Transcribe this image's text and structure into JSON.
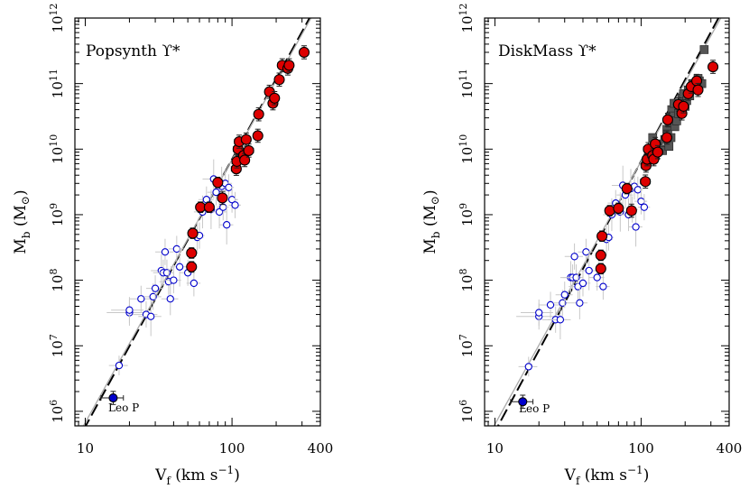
{
  "chart_data": [
    {
      "type": "scatter",
      "title": "Popsynth ϒ*",
      "xlabel": "Vf (km s-1)",
      "ylabel": "Mb (M☉)",
      "xscale": "log",
      "yscale": "log",
      "xlim": [
        8.5,
        400
      ],
      "ylim": [
        600000,
        1000000000000
      ],
      "xticks": [
        {
          "v": 10,
          "label": "10"
        },
        {
          "v": 100,
          "label": "100"
        },
        {
          "v": 400,
          "label": "400"
        }
      ],
      "yticks": [
        {
          "v": 6,
          "label": "6"
        },
        {
          "v": 7,
          "label": "7"
        },
        {
          "v": 8,
          "label": "8"
        },
        {
          "v": 9,
          "label": "9"
        },
        {
          "v": 10,
          "label": "10"
        },
        {
          "v": 11,
          "label": "11"
        },
        {
          "v": 12,
          "label": "12"
        }
      ],
      "axis_text": {
        "x_main": "V",
        "x_sub": "f",
        "x_rest": " (km s",
        "x_sup": "−1",
        "x_close": ")",
        "y_main": "M",
        "y_sub": "b",
        "y_rest": " (M",
        "y_sun": "⊙",
        "y_close": ")",
        "tick_base": "10"
      },
      "annotation": "Leo P",
      "fit_lines": [
        {
          "style": "dashed",
          "color": "#000000",
          "points": [
            [
              8.5,
              300000
            ],
            [
              400,
              2000000000000
            ]
          ]
        },
        {
          "style": "solid",
          "color": "#aaaaaa",
          "points": [
            [
              8.5,
              350000
            ],
            [
              400,
              1800000000000
            ]
          ]
        }
      ],
      "series": [
        {
          "marker": "open-circle",
          "color": "#0000cc",
          "points": [
            [
              17,
              5000000,
              2.5,
              0.15
            ],
            [
              20,
              32000000,
              6,
              0.2
            ],
            [
              20,
              35000000,
              5,
              0.2
            ],
            [
              24,
              52000000,
              4,
              0.2
            ],
            [
              26,
              30000000,
              5,
              0.2
            ],
            [
              28,
              28000000,
              5,
              0.3
            ],
            [
              29,
              56000000,
              4,
              0.2
            ],
            [
              30,
              75000000,
              4,
              0.2
            ],
            [
              33,
              140000000,
              5,
              0.25
            ],
            [
              34,
              130000000,
              5,
              0.2
            ],
            [
              35,
              270000000,
              5,
              0.2
            ],
            [
              36,
              130000000,
              4,
              0.2
            ],
            [
              37,
              95000000,
              5,
              0.2
            ],
            [
              38,
              52000000,
              5,
              0.25
            ],
            [
              40,
              100000000,
              5,
              0.2
            ],
            [
              42,
              300000000,
              5,
              0.2
            ],
            [
              44,
              160000000,
              6,
              0.3
            ],
            [
              50,
              130000000,
              6,
              0.2
            ],
            [
              55,
              90000000,
              6,
              0.2
            ],
            [
              58,
              450000000,
              6,
              0.25
            ],
            [
              60,
              480000000,
              5,
              0.2
            ],
            [
              63,
              1100000000,
              8,
              0.25
            ],
            [
              67,
              1700000000,
              8,
              0.2
            ],
            [
              72,
              1200000000,
              8,
              0.3
            ],
            [
              75,
              3500000000,
              12,
              0.3
            ],
            [
              78,
              2200000000,
              10,
              0.2
            ],
            [
              82,
              1100000000,
              10,
              0.25
            ],
            [
              85,
              2700000000,
              10,
              0.3
            ],
            [
              87,
              1300000000,
              8,
              0.2
            ],
            [
              90,
              3000000000,
              10,
              0.2
            ],
            [
              92,
              700000000,
              10,
              0.3
            ],
            [
              95,
              2600000000,
              8,
              0.2
            ],
            [
              100,
              1700000000,
              10,
              0.2
            ],
            [
              105,
              1400000000,
              10,
              0.2
            ]
          ]
        },
        {
          "marker": "filled-circle",
          "color": "#dd0000",
          "points": [
            [
              53,
              160000000,
              3,
              0.08
            ],
            [
              53,
              260000000,
              3,
              0.08
            ],
            [
              54,
              520000000,
              3,
              0.08
            ],
            [
              61,
              1300000000,
              4,
              0.08
            ],
            [
              70,
              1300000000,
              4,
              0.08
            ],
            [
              80,
              3100000000,
              5,
              0.08
            ],
            [
              86,
              1800000000,
              6,
              0.1
            ],
            [
              107,
              5000000000,
              8,
              0.1
            ],
            [
              108,
              6500000000,
              8,
              0.1
            ],
            [
              110,
              10000000000,
              8,
              0.1
            ],
            [
              112,
              13000000000,
              8,
              0.1
            ],
            [
              120,
              8000000000,
              9,
              0.1
            ],
            [
              122,
              6800000000,
              8,
              0.1
            ],
            [
              125,
              14000000000,
              9,
              0.1
            ],
            [
              130,
              9500000000,
              10,
              0.1
            ],
            [
              150,
              16000000000,
              10,
              0.1
            ],
            [
              152,
              34000000000,
              10,
              0.1
            ],
            [
              180,
              75000000000,
              12,
              0.1
            ],
            [
              190,
              50000000000,
              10,
              0.1
            ],
            [
              195,
              60000000000,
              12,
              0.1
            ],
            [
              210,
              115000000000,
              14,
              0.1
            ],
            [
              220,
              190000000000,
              15,
              0.1
            ],
            [
              240,
              170000000000,
              15,
              0.1
            ],
            [
              245,
              190000000000,
              15,
              0.1
            ],
            [
              310,
              300000000000,
              20,
              0.1
            ]
          ]
        },
        {
          "marker": "filled-circle",
          "color": "#0000cc",
          "points": [
            [
              15.5,
              1600000,
              2.7,
              0.1
            ]
          ]
        }
      ]
    },
    {
      "type": "scatter",
      "title": "DiskMass ϒ*",
      "xlabel": "Vf (km s-1)",
      "ylabel": "Mb (M☉)",
      "xscale": "log",
      "yscale": "log",
      "xlim": [
        8.5,
        400
      ],
      "ylim": [
        600000,
        1000000000000
      ],
      "xticks": [
        {
          "v": 10,
          "label": "10"
        },
        {
          "v": 100,
          "label": "100"
        },
        {
          "v": 400,
          "label": "400"
        }
      ],
      "yticks": [
        {
          "v": 6,
          "label": "6"
        },
        {
          "v": 7,
          "label": "7"
        },
        {
          "v": 8,
          "label": "8"
        },
        {
          "v": 9,
          "label": "9"
        },
        {
          "v": 10,
          "label": "10"
        },
        {
          "v": 11,
          "label": "11"
        },
        {
          "v": 12,
          "label": "12"
        }
      ],
      "axis_text": {
        "x_main": "V",
        "x_sub": "f",
        "x_rest": " (km s",
        "x_sup": "−1",
        "x_close": ")",
        "y_main": "M",
        "y_sub": "b",
        "y_rest": " (M",
        "y_sun": "⊙",
        "y_close": ")",
        "tick_base": "10"
      },
      "annotation": "Leo P",
      "fit_lines": [
        {
          "style": "dashed",
          "color": "#000000",
          "points": [
            [
              8.5,
              250000
            ],
            [
              400,
              2000000000000
            ]
          ]
        },
        {
          "style": "solid",
          "color": "#aaaaaa",
          "points": [
            [
              8.5,
              330000
            ],
            [
              400,
              1700000000000
            ]
          ]
        }
      ],
      "series": [
        {
          "marker": "open-circle",
          "color": "#0000cc",
          "points": [
            [
              17,
              4800000,
              2.5,
              0.15
            ],
            [
              20,
              28000000,
              6,
              0.2
            ],
            [
              20,
              32000000,
              5,
              0.2
            ],
            [
              24,
              42000000,
              4,
              0.2
            ],
            [
              26,
              25000000,
              5,
              0.2
            ],
            [
              28,
              25000000,
              5,
              0.3
            ],
            [
              29,
              45000000,
              4,
              0.2
            ],
            [
              30,
              60000000,
              4,
              0.2
            ],
            [
              33,
              110000000,
              5,
              0.25
            ],
            [
              34,
              110000000,
              5,
              0.2
            ],
            [
              35,
              230000000,
              5,
              0.2
            ],
            [
              36,
              110000000,
              4,
              0.2
            ],
            [
              37,
              80000000,
              5,
              0.2
            ],
            [
              38,
              45000000,
              5,
              0.25
            ],
            [
              40,
              90000000,
              5,
              0.2
            ],
            [
              42,
              270000000,
              5,
              0.2
            ],
            [
              44,
              140000000,
              6,
              0.3
            ],
            [
              50,
              110000000,
              6,
              0.2
            ],
            [
              55,
              80000000,
              6,
              0.2
            ],
            [
              58,
              420000000,
              6,
              0.25
            ],
            [
              60,
              450000000,
              5,
              0.2
            ],
            [
              63,
              1000000000,
              8,
              0.25
            ],
            [
              67,
              1500000000,
              8,
              0.2
            ],
            [
              72,
              1100000000,
              8,
              0.3
            ],
            [
              75,
              2800000000,
              12,
              0.3
            ],
            [
              78,
              2000000000,
              10,
              0.2
            ],
            [
              82,
              1000000000,
              10,
              0.25
            ],
            [
              85,
              2500000000,
              10,
              0.3
            ],
            [
              87,
              1200000000,
              8,
              0.2
            ],
            [
              90,
              2700000000,
              10,
              0.2
            ],
            [
              92,
              650000000,
              10,
              0.3
            ],
            [
              95,
              2400000000,
              8,
              0.2
            ],
            [
              100,
              1600000000,
              10,
              0.2
            ],
            [
              105,
              1300000000,
              10,
              0.2
            ]
          ]
        },
        {
          "marker": "filled-square",
          "color": "#555555",
          "points": [
            [
              112,
              7500000000
            ],
            [
              116,
              9500000000
            ],
            [
              120,
              15000000000
            ],
            [
              125,
              8000000000
            ],
            [
              130,
              12000000000
            ],
            [
              135,
              10000000000
            ],
            [
              140,
              9500000000
            ],
            [
              145,
              14000000000
            ],
            [
              150,
              20000000000
            ],
            [
              152,
              17000000000
            ],
            [
              155,
              11000000000
            ],
            [
              158,
              25000000000
            ],
            [
              160,
              15000000000
            ],
            [
              162,
              40000000000
            ],
            [
              165,
              32000000000
            ],
            [
              168,
              50000000000
            ],
            [
              170,
              22000000000
            ],
            [
              175,
              27000000000
            ],
            [
              180,
              35000000000
            ],
            [
              190,
              60000000000
            ],
            [
              195,
              70000000000
            ],
            [
              200,
              45000000000
            ],
            [
              205,
              55000000000
            ],
            [
              210,
              80000000000
            ],
            [
              215,
              65000000000
            ],
            [
              225,
              100000000000
            ],
            [
              230,
              85000000000
            ],
            [
              240,
              95000000000
            ],
            [
              245,
              120000000000
            ],
            [
              250,
              110000000000
            ],
            [
              260,
              100000000000
            ],
            [
              270,
              330000000000
            ]
          ]
        },
        {
          "marker": "filled-circle",
          "color": "#dd0000",
          "points": [
            [
              53,
              150000000,
              3,
              0.08
            ],
            [
              53,
              240000000,
              3,
              0.08
            ],
            [
              54,
              470000000,
              3,
              0.08
            ],
            [
              61,
              1150000000,
              4,
              0.08
            ],
            [
              70,
              1250000000,
              4,
              0.08
            ],
            [
              80,
              2500000000,
              5,
              0.08
            ],
            [
              86,
              1150000000,
              6,
              0.1
            ],
            [
              107,
              3200000000,
              8,
              0.1
            ],
            [
              108,
              5600000000,
              8,
              0.1
            ],
            [
              110,
              7000000000,
              8,
              0.1
            ],
            [
              112,
              10000000000,
              8,
              0.1
            ],
            [
              120,
              8000000000,
              9,
              0.1
            ],
            [
              122,
              7000000000,
              8,
              0.1
            ],
            [
              125,
              12000000000,
              9,
              0.1
            ],
            [
              130,
              9000000000,
              10,
              0.1
            ],
            [
              150,
              15000000000,
              10,
              0.1
            ],
            [
              152,
              28000000000,
              10,
              0.1
            ],
            [
              180,
              48000000000,
              12,
              0.1
            ],
            [
              190,
              35000000000,
              10,
              0.1
            ],
            [
              195,
              45000000000,
              12,
              0.1
            ],
            [
              210,
              70000000000,
              14,
              0.1
            ],
            [
              220,
              90000000000,
              15,
              0.1
            ],
            [
              240,
              110000000000,
              15,
              0.1
            ],
            [
              245,
              80000000000,
              15,
              0.1
            ],
            [
              310,
              180000000000,
              20,
              0.1
            ]
          ]
        },
        {
          "marker": "filled-circle",
          "color": "#0000cc",
          "points": [
            [
              15.5,
              1400000,
              2.7,
              0.1
            ]
          ]
        }
      ]
    }
  ]
}
